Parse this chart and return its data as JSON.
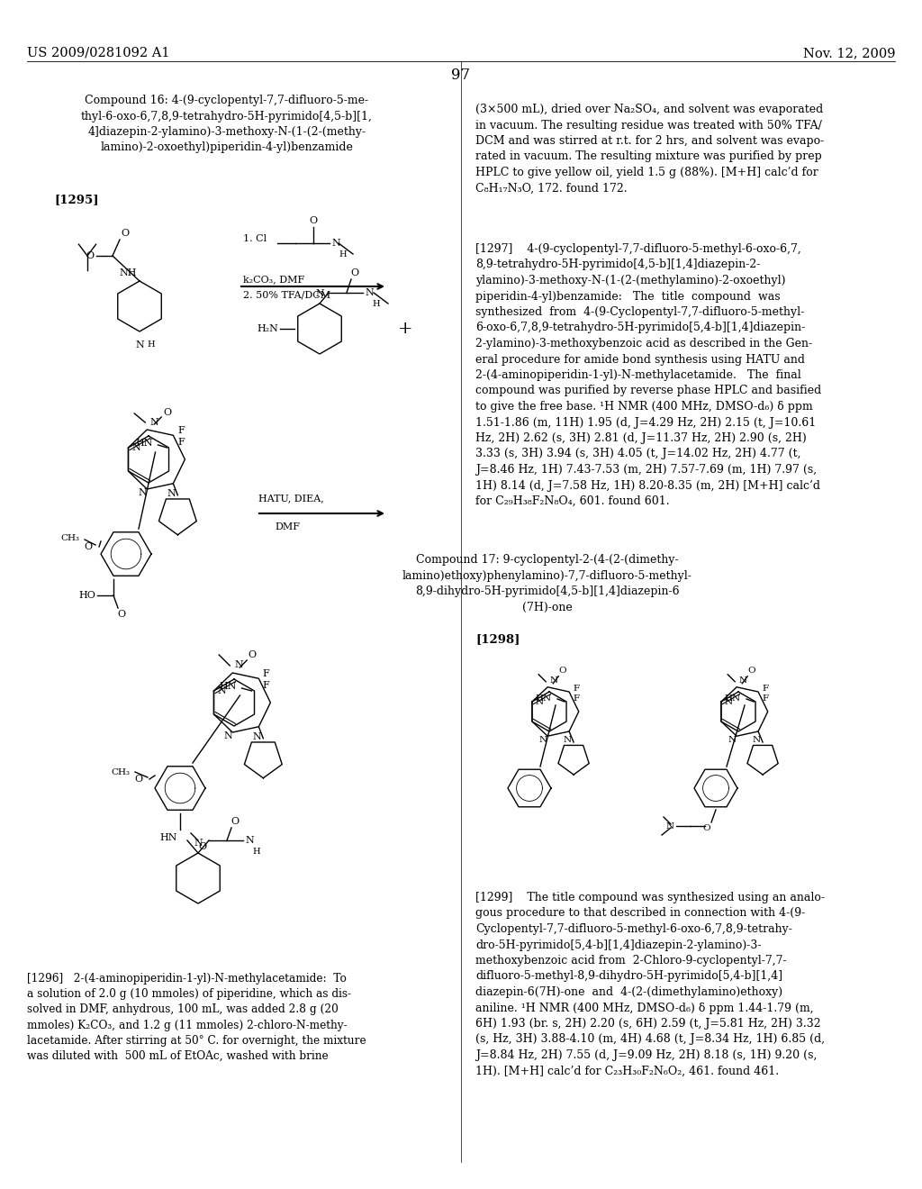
{
  "background_color": "#ffffff",
  "header_left": "US 2009/0281092 A1",
  "header_right": "Nov. 12, 2009",
  "page_number": "97",
  "font_size_header": 10.5,
  "font_size_body": 9.0,
  "font_size_page_num": 12,
  "compound16_title": "Compound 16: 4-(9-cyclopentyl-7,7-difluoro-5-me-\nthyl-6-oxo-6,7,8,9-tetrahydro-5H-pyrimido[4,5-b][1,\n4]diazepin-2-ylamino)-3-methoxy-N-(1-(2-(methy-\nlamino)-2-oxoethyl)piperidin-4-yl)benzamide",
  "ref1295": "[1295]",
  "right_col_text1": "(3×500 mL), dried over Na₂SO₄, and solvent was evaporated\nin vacuum. The resulting residue was treated with 50% TFA/\nDCM and was stirred at r.t. for 2 hrs, and solvent was evapo-\nrated in vacuum. The resulting mixture was purified by prep\nHPLC to give yellow oil, yield 1.5 g (88%). [M+H] calc’d for\nC₈H₁₇N₃O, 172. found 172.",
  "ref1297_text": "[1297]    4-(9-cyclopentyl-7,7-difluoro-5-methyl-6-oxo-6,7,\n8,9-tetrahydro-5H-pyrimido[4,5-b][1,4]diazepin-2-\nylamino)-3-methoxy-N-(1-(2-(methylamino)-2-oxoethyl)\npiperidin-4-yl)benzamide:   The  title  compound  was\nsynthesized  from  4-(9-Cyclopentyl-7,7-difluoro-5-methyl-\n6-oxo-6,7,8,9-tetrahydro-5H-pyrimido[5,4-b][1,4]diazepin-\n2-ylamino)-3-methoxybenzoic acid as described in the Gen-\neral procedure for amide bond synthesis using HATU and\n2-(4-aminopiperidin-1-yl)-N-methylacetamide.   The  final\ncompound was purified by reverse phase HPLC and basified\nto give the free base. ¹H NMR (400 MHz, DMSO-d₆) δ ppm\n1.51-1.86 (m, 11H) 1.95 (d, J=4.29 Hz, 2H) 2.15 (t, J=10.61\nHz, 2H) 2.62 (s, 3H) 2.81 (d, J=11.37 Hz, 2H) 2.90 (s, 2H)\n3.33 (s, 3H) 3.94 (s, 3H) 4.05 (t, J=14.02 Hz, 2H) 4.77 (t,\nJ=8.46 Hz, 1H) 7.43-7.53 (m, 2H) 7.57-7.69 (m, 1H) 7.97 (s,\n1H) 8.14 (d, J=7.58 Hz, 1H) 8.20-8.35 (m, 2H) [M+H] calc’d\nfor C₂₉H₃₈F₂N₈O₄, 601. found 601.",
  "compound17_title": "Compound 17: 9-cyclopentyl-2-(4-(2-(dimethy-\nlamino)ethoxy)phenylamino)-7,7-difluoro-5-methyl-\n8,9-dihydro-5H-pyrimido[4,5-b][1,4]diazepin-6\n(7H)-one",
  "ref1298": "[1298]",
  "ref1299_text": "[1299]    The title compound was synthesized using an analo-\ngous procedure to that described in connection with 4-(9-\nCyclopentyl-7,7-difluoro-5-methyl-6-oxo-6,7,8,9-tetrahy-\ndro-5H-pyrimido[5,4-b][1,4]diazepin-2-ylamino)-3-\nmethoxybenzoic acid from  2-Chloro-9-cyclopentyl-7,7-\ndifluoro-5-methyl-8,9-dihydro-5H-pyrimido[5,4-b][1,4]\ndiazepin-6(7H)-one  and  4-(2-(dimethylamino)ethoxy)\naniline. ¹H NMR (400 MHz, DMSO-d₆) δ ppm 1.44-1.79 (m,\n6H) 1.93 (br. s, 2H) 2.20 (s, 6H) 2.59 (t, J=5.81 Hz, 2H) 3.32\n(s, Hz, 3H) 3.88-4.10 (m, 4H) 4.68 (t, J=8.34 Hz, 1H) 6.85 (d,\nJ=8.84 Hz, 2H) 7.55 (d, J=9.09 Hz, 2H) 8.18 (s, 1H) 9.20 (s,\n1H). [M+H] calc’d for C₂₃H₃₀F₂N₆O₂, 461. found 461.",
  "ref1296_text": "[1296]   2-(4-aminopiperidin-1-yl)-N-methylacetamide:  To\na solution of 2.0 g (10 mmoles) of piperidine, which as dis-\nsolved in DMF, anhydrous, 100 mL, was added 2.8 g (20\nmmoles) K₂CO₃, and 1.2 g (11 mmoles) 2-chloro-N-methy-\nlacetamide. After stirring at 50° C. for overnight, the mixture\nwas diluted with  500 mL of EtOAc, washed with brine"
}
